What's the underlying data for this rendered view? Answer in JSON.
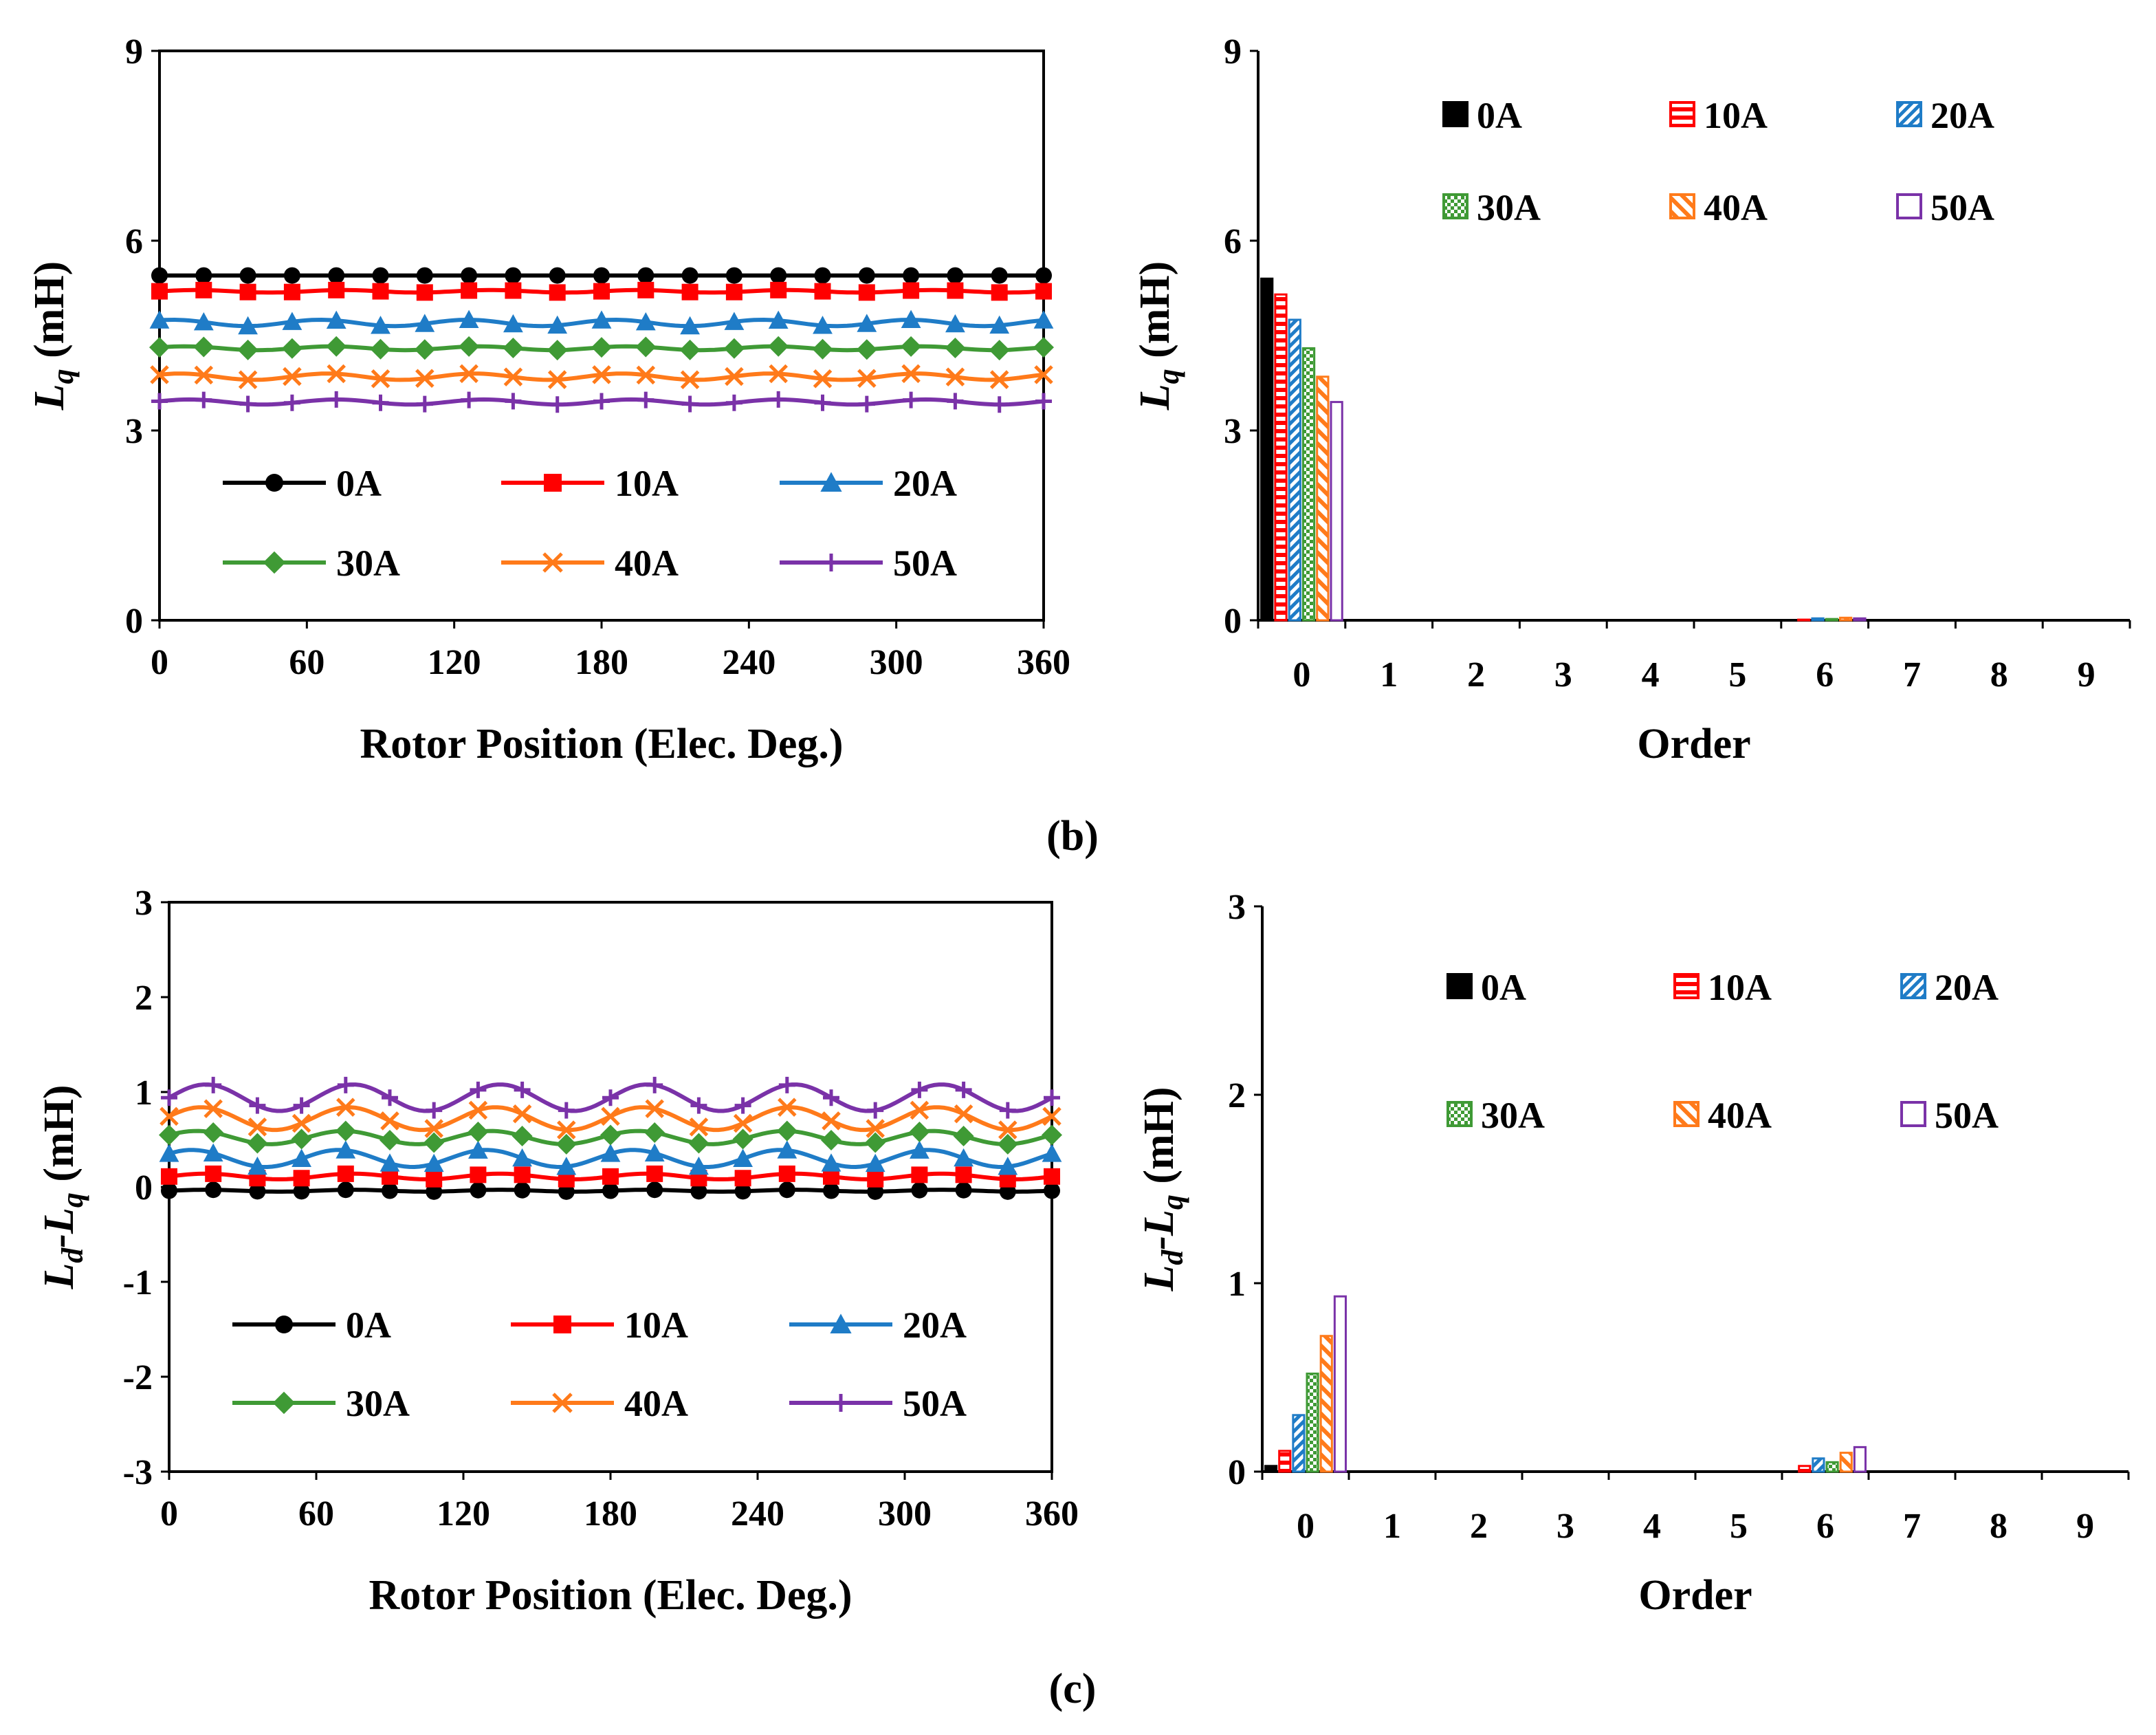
{
  "panel_labels": {
    "b": "(b)",
    "c": "(c)"
  },
  "colors": {
    "0A": "#000000",
    "10A": "#ff0000",
    "20A": "#1f7cc7",
    "30A": "#3f9a35",
    "40A": "#ff7a1a",
    "50A": "#7a32a8"
  },
  "chart_data": [
    {
      "id": "b-left",
      "type": "line",
      "xlabel": "Rotor Position (Elec. Deg.)",
      "ylabel_main": "L",
      "ylabel_sub": "q",
      "ylabel_unit": " (mH)",
      "xlim": [
        0,
        360
      ],
      "ylim": [
        0,
        9
      ],
      "xticks": [
        0,
        60,
        120,
        180,
        240,
        300,
        360
      ],
      "yticks": [
        0,
        3,
        6,
        9
      ],
      "legend": [
        "0A",
        "10A",
        "20A",
        "30A",
        "40A",
        "50A"
      ],
      "markers": [
        "circle",
        "square",
        "triangle",
        "diamond",
        "x",
        "plus"
      ],
      "series": [
        {
          "name": "0A",
          "base": 5.45,
          "amp": 0.0,
          "periods": 6,
          "phase": 0
        },
        {
          "name": "10A",
          "base": 5.2,
          "amp": 0.02,
          "periods": 6,
          "phase": 0
        },
        {
          "name": "20A",
          "base": 4.7,
          "amp": 0.05,
          "periods": 6,
          "phase": 1.0
        },
        {
          "name": "30A",
          "base": 4.3,
          "amp": 0.03,
          "periods": 6,
          "phase": 0.5
        },
        {
          "name": "40A",
          "base": 3.85,
          "amp": 0.05,
          "periods": 6,
          "phase": 0.7
        },
        {
          "name": "50A",
          "base": 3.45,
          "amp": 0.04,
          "periods": 6,
          "phase": 0.3
        }
      ]
    },
    {
      "id": "b-right",
      "type": "bar",
      "xlabel": "Order",
      "ylabel_main": "L",
      "ylabel_sub": "q",
      "ylabel_unit": " (mH)",
      "ylim": [
        0,
        9
      ],
      "yticks": [
        0,
        3,
        6,
        9
      ],
      "categories": [
        "0",
        "1",
        "2",
        "3",
        "4",
        "5",
        "6",
        "7",
        "8",
        "9"
      ],
      "legend": [
        "0A",
        "10A",
        "20A",
        "30A",
        "40A",
        "50A"
      ],
      "series": [
        {
          "name": "0A",
          "values": [
            5.4,
            0,
            0,
            0,
            0,
            0,
            0.0,
            0,
            0,
            0
          ]
        },
        {
          "name": "10A",
          "values": [
            5.15,
            0,
            0,
            0,
            0,
            0,
            0.01,
            0,
            0,
            0
          ]
        },
        {
          "name": "20A",
          "values": [
            4.75,
            0,
            0,
            0,
            0,
            0,
            0.03,
            0,
            0,
            0
          ]
        },
        {
          "name": "30A",
          "values": [
            4.3,
            0,
            0,
            0,
            0,
            0,
            0.02,
            0,
            0,
            0
          ]
        },
        {
          "name": "40A",
          "values": [
            3.85,
            0,
            0,
            0,
            0,
            0,
            0.04,
            0,
            0,
            0
          ]
        },
        {
          "name": "50A",
          "values": [
            3.45,
            0,
            0,
            0,
            0,
            0,
            0.03,
            0,
            0,
            0
          ]
        }
      ]
    },
    {
      "id": "c-left",
      "type": "line",
      "xlabel": "Rotor Position (Elec. Deg.)",
      "ylabel_main": "L",
      "ylabel_sub": "d",
      "ylabel_mid": "-L",
      "ylabel_sub2": "q",
      "ylabel_unit": " (mH)",
      "xlim": [
        0,
        360
      ],
      "ylim": [
        -3,
        3
      ],
      "xticks": [
        0,
        60,
        120,
        180,
        240,
        300,
        360
      ],
      "yticks": [
        -3,
        -2,
        -1,
        0,
        1,
        2,
        3
      ],
      "legend": [
        "0A",
        "10A",
        "20A",
        "30A",
        "40A",
        "50A"
      ],
      "markers": [
        "circle",
        "square",
        "triangle",
        "diamond",
        "x",
        "plus"
      ],
      "series": [
        {
          "name": "0A",
          "base": -0.04,
          "amp": 0.01,
          "periods": 6,
          "phase": 0
        },
        {
          "name": "10A",
          "base": 0.11,
          "amp": 0.03,
          "periods": 6,
          "phase": 0
        },
        {
          "name": "20A",
          "base": 0.3,
          "amp": 0.09,
          "periods": 6,
          "phase": 0.6
        },
        {
          "name": "30A",
          "base": 0.52,
          "amp": 0.07,
          "periods": 6,
          "phase": 0.4
        },
        {
          "name": "40A",
          "base": 0.72,
          "amp": 0.12,
          "periods": 6,
          "phase": 0.2
        },
        {
          "name": "50A",
          "base": 0.94,
          "amp": 0.14,
          "periods": 6,
          "phase": 0.0
        }
      ]
    },
    {
      "id": "c-right",
      "type": "bar",
      "xlabel": "Order",
      "ylabel_main": "L",
      "ylabel_sub": "d",
      "ylabel_mid": "-L",
      "ylabel_sub2": "q",
      "ylabel_unit": " (mH)",
      "ylim": [
        0,
        3
      ],
      "yticks": [
        0,
        1,
        2,
        3
      ],
      "categories": [
        "0",
        "1",
        "2",
        "3",
        "4",
        "5",
        "6",
        "7",
        "8",
        "9"
      ],
      "legend": [
        "0A",
        "10A",
        "20A",
        "30A",
        "40A",
        "50A"
      ],
      "series": [
        {
          "name": "0A",
          "values": [
            0.03,
            0,
            0,
            0,
            0,
            0,
            0.0,
            0,
            0,
            0
          ]
        },
        {
          "name": "10A",
          "values": [
            0.11,
            0,
            0,
            0,
            0,
            0,
            0.03,
            0,
            0,
            0
          ]
        },
        {
          "name": "20A",
          "values": [
            0.3,
            0,
            0,
            0,
            0,
            0,
            0.07,
            0,
            0,
            0
          ]
        },
        {
          "name": "30A",
          "values": [
            0.52,
            0,
            0,
            0,
            0,
            0,
            0.05,
            0,
            0,
            0
          ]
        },
        {
          "name": "40A",
          "values": [
            0.72,
            0,
            0,
            0,
            0,
            0,
            0.1,
            0,
            0,
            0
          ]
        },
        {
          "name": "50A",
          "values": [
            0.93,
            0,
            0,
            0,
            0,
            0,
            0.13,
            0,
            0,
            0
          ]
        }
      ]
    }
  ]
}
